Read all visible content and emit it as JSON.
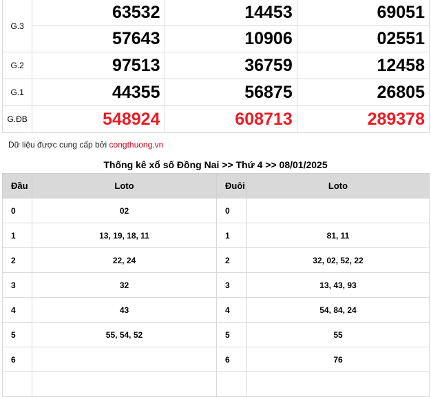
{
  "results": {
    "rows": [
      {
        "label": "G.3",
        "values": [
          [
            "63532",
            "57643"
          ],
          [
            "14453",
            "10906"
          ],
          [
            "69051",
            "02551"
          ]
        ]
      },
      {
        "label": "G.2",
        "values": [
          "97513",
          "36759",
          "12458"
        ]
      },
      {
        "label": "G.1",
        "values": [
          "44355",
          "56875",
          "26805"
        ]
      },
      {
        "label": "G.ĐB",
        "values": [
          "548924",
          "608713",
          "289378"
        ]
      }
    ],
    "special_color": "#ec1c24"
  },
  "source": {
    "text": "Dữ liệu được cung cấp bởi ",
    "link": "congthuong.vn"
  },
  "stats": {
    "title": "Thống kê xổ số Đồng Nai >> Thứ 4 >> 08/01/2025",
    "headers": [
      "Đầu",
      "Loto",
      "Đuôi",
      "Loto"
    ],
    "rows": [
      [
        "0",
        "02",
        "0",
        ""
      ],
      [
        "1",
        "13, 19, 18, 11",
        "1",
        "81, 11"
      ],
      [
        "2",
        "22, 24",
        "2",
        "32, 02, 52, 22"
      ],
      [
        "3",
        "32",
        "3",
        "13, 43, 93"
      ],
      [
        "4",
        "43",
        "4",
        "54, 84, 24"
      ],
      [
        "5",
        "55, 54, 52",
        "5",
        "55"
      ],
      [
        "6",
        "",
        "6",
        "76"
      ],
      [
        "",
        "",
        "",
        ""
      ]
    ]
  }
}
